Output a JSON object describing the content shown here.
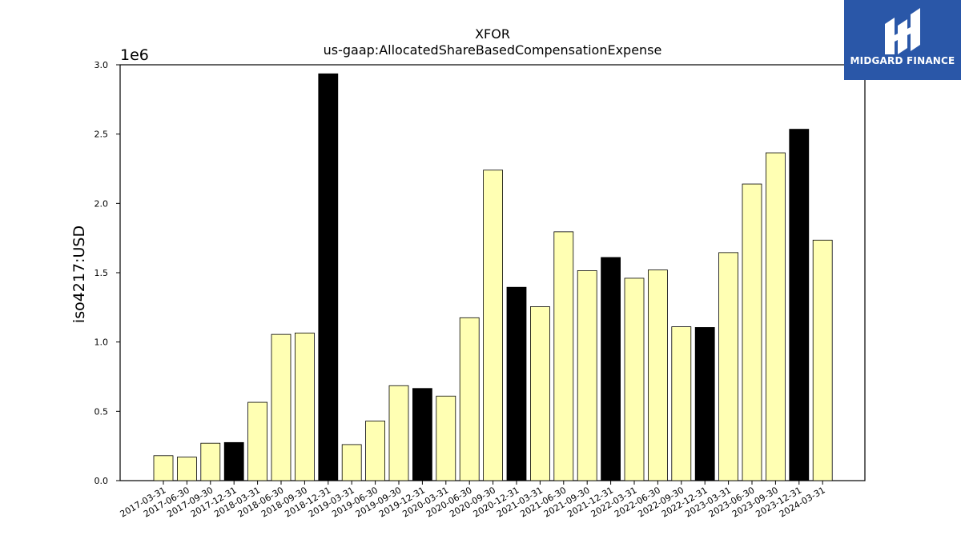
{
  "brand": {
    "name": "MIDGARD FINANCE",
    "background": "#2a57a8",
    "foreground": "#ffffff"
  },
  "chart_data": {
    "type": "bar",
    "title": "XFOR",
    "subtitle": "us-gaap:AllocatedShareBasedCompensationExpense",
    "xlabel": "",
    "ylabel": "iso4217:USD",
    "y_multiplier_label": "1e6",
    "ylim": [
      0,
      3000000
    ],
    "yticks": [
      0.0,
      0.5,
      1.0,
      1.5,
      2.0,
      2.5,
      3.0
    ],
    "ytick_labels": [
      "0.0",
      "0.5",
      "1.0",
      "1.5",
      "2.0",
      "2.5",
      "3.0"
    ],
    "grid": false,
    "categories": [
      "2017-03-31",
      "2017-06-30",
      "2017-09-30",
      "2017-12-31",
      "2018-03-31",
      "2018-06-30",
      "2018-09-30",
      "2018-12-31",
      "2019-03-31",
      "2019-06-30",
      "2019-09-30",
      "2019-12-31",
      "2020-03-31",
      "2020-06-30",
      "2020-09-30",
      "2020-12-31",
      "2021-03-31",
      "2021-06-30",
      "2021-09-30",
      "2021-12-31",
      "2022-03-31",
      "2022-06-30",
      "2022-09-30",
      "2022-12-31",
      "2023-03-31",
      "2023-06-30",
      "2023-09-30",
      "2023-12-31",
      "2024-03-31"
    ],
    "values": [
      180000,
      170000,
      270000,
      275000,
      565000,
      1055000,
      1065000,
      2935000,
      260000,
      430000,
      685000,
      665000,
      610000,
      1175000,
      2240000,
      1395000,
      1255000,
      1795000,
      1515000,
      1610000,
      1460000,
      1520000,
      1110000,
      1105000,
      1645000,
      2140000,
      2365000,
      2535000,
      1735000
    ],
    "bar_colors": {
      "default": "#ffffb3",
      "year_end": "#000000",
      "edge": "#000000"
    }
  }
}
